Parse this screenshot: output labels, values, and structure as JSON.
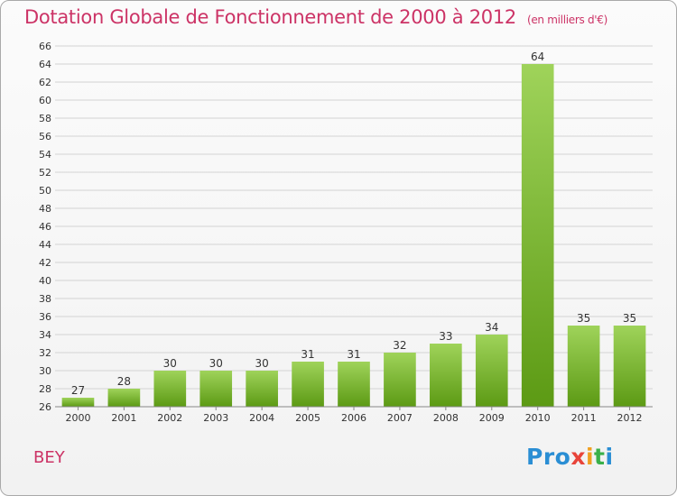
{
  "header": {
    "title": "Dotation Globale de Fonctionnement de 2000 à 2012",
    "subtitle": "(en milliers d'€)"
  },
  "commune": "BEY",
  "logo": {
    "parts": [
      "Pro",
      "x",
      "i",
      "t",
      "i"
    ]
  },
  "colors": {
    "title": "#cc3366",
    "bar_light": "#9fd35a",
    "bar_dark": "#5c9a14",
    "grid": "#d3d3d3",
    "axis_text": "#333333"
  },
  "chart_data": {
    "type": "bar",
    "title": "Dotation Globale de Fonctionnement de 2000 à 2012",
    "subtitle": "(en milliers d'€)",
    "xlabel": "",
    "ylabel": "",
    "categories": [
      "2000",
      "2001",
      "2002",
      "2003",
      "2004",
      "2005",
      "2006",
      "2007",
      "2008",
      "2009",
      "2010",
      "2011",
      "2012"
    ],
    "values": [
      27,
      28,
      30,
      30,
      30,
      31,
      31,
      32,
      33,
      34,
      64,
      35,
      35
    ],
    "ylim": [
      26,
      66
    ],
    "ytick_step": 2,
    "grid": true,
    "legend": "none",
    "data_labels": true
  }
}
